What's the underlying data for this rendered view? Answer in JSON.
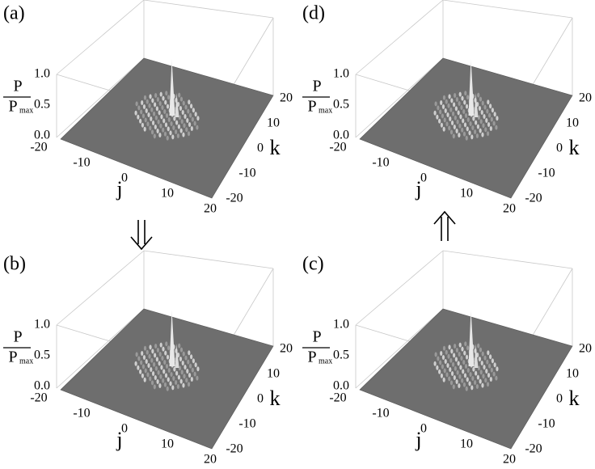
{
  "panels": [
    {
      "label": "(a)",
      "z_num": "P",
      "z_den": "P",
      "z_sub": "max",
      "zticks": [
        "0.0",
        "0.5",
        "1.0"
      ],
      "jticks": [
        "-20",
        "-10",
        "0",
        "10",
        "20"
      ],
      "kticks": [
        "-20",
        "-10",
        "0",
        "10",
        "20"
      ],
      "j_label": "j",
      "k_label": "k"
    },
    {
      "label": "(b)",
      "z_num": "P",
      "z_den": "P",
      "z_sub": "max",
      "zticks": [
        "0.0",
        "0.5",
        "1.0"
      ],
      "jticks": [
        "-20",
        "-10",
        "0",
        "10",
        "20"
      ],
      "kticks": [
        "-20",
        "-10",
        "0",
        "10",
        "20"
      ],
      "j_label": "j",
      "k_label": "k"
    },
    {
      "label": "(c)",
      "z_num": "P",
      "z_den": "P",
      "z_sub": "max",
      "zticks": [
        "0.0",
        "0.5",
        "1.0"
      ],
      "jticks": [
        "-20",
        "-10",
        "0",
        "10",
        "20"
      ],
      "kticks": [
        "-20",
        "-10",
        "0",
        "10",
        "20"
      ],
      "j_label": "j",
      "k_label": "k"
    },
    {
      "label": "(d)",
      "z_num": "P",
      "z_den": "P",
      "z_sub": "max",
      "zticks": [
        "0.0",
        "0.5",
        "1.0"
      ],
      "jticks": [
        "-20",
        "-10",
        "0",
        "10",
        "20"
      ],
      "kticks": [
        "-20",
        "-10",
        "0",
        "10",
        "20"
      ],
      "j_label": "j",
      "k_label": "k"
    }
  ]
}
